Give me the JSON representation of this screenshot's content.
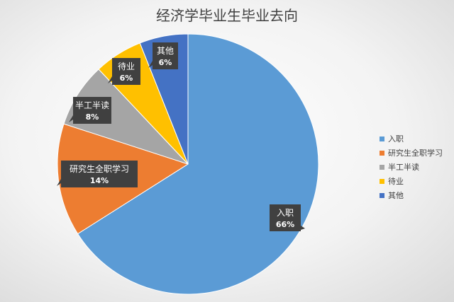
{
  "chart_data": {
    "type": "pie",
    "title": "经济学毕业生毕业去向",
    "categories": [
      "入职",
      "研究生全职学习",
      "半工半读",
      "待业",
      "其他"
    ],
    "values": [
      66,
      14,
      8,
      6,
      6
    ],
    "value_labels": [
      "66%",
      "14%",
      "8%",
      "6%",
      "6%"
    ],
    "colors": [
      "#5B9BD5",
      "#ED7D31",
      "#A5A5A5",
      "#FFC000",
      "#4472C4"
    ],
    "legend_position": "right",
    "start_angle_deg": 0,
    "direction": "clockwise"
  }
}
